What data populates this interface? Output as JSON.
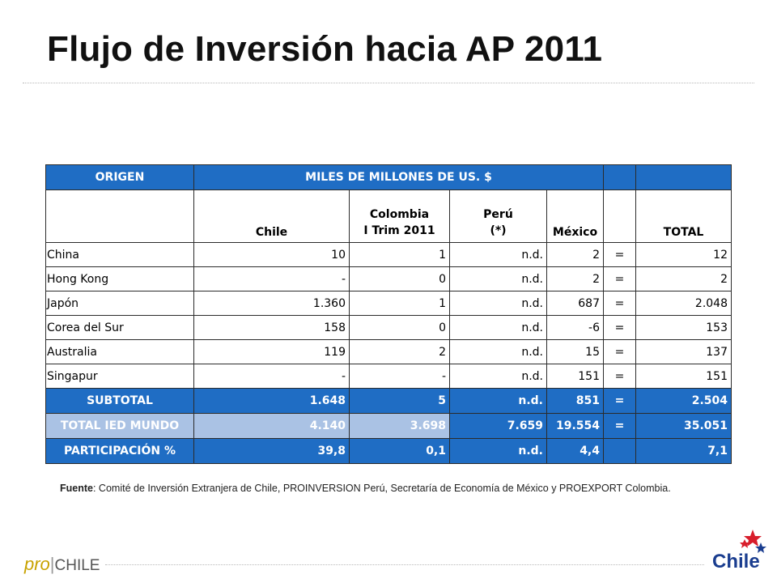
{
  "title": "Flujo de Inversión hacia AP 2011",
  "table": {
    "header_top": {
      "origin": "ORIGEN",
      "units": "MILES DE MILLONES DE US. $"
    },
    "columns": {
      "chile": "Chile",
      "colombia": "Colombia I Trim 2011",
      "peru": "Perú (*)",
      "mexico": "México",
      "total": "TOTAL"
    },
    "rows": [
      {
        "origin": "China",
        "chile": "10",
        "colombia": "1",
        "peru": "n.d.",
        "mexico": "2",
        "eq": "=",
        "total": "12"
      },
      {
        "origin": "Hong Kong",
        "chile": "-",
        "colombia": "0",
        "peru": "n.d.",
        "mexico": "2",
        "eq": "=",
        "total": "2"
      },
      {
        "origin": "Japón",
        "chile": "1.360",
        "colombia": "1",
        "peru": "n.d.",
        "mexico": "687",
        "eq": "=",
        "total": "2.048"
      },
      {
        "origin": "Corea del Sur",
        "chile": "158",
        "colombia": "0",
        "peru": "n.d.",
        "mexico": "-6",
        "eq": "=",
        "total": "153"
      },
      {
        "origin": "Australia",
        "chile": "119",
        "colombia": "2",
        "peru": "n.d.",
        "mexico": "15",
        "eq": "=",
        "total": "137"
      },
      {
        "origin": "Singapur",
        "chile": "-",
        "colombia": "-",
        "peru": "n.d.",
        "mexico": "151",
        "eq": "=",
        "total": "151"
      }
    ],
    "subtotal": {
      "label": "SUBTOTAL",
      "chile": "1.648",
      "colombia": "5",
      "peru": "n.d.",
      "mexico": "851",
      "eq": "=",
      "total": "2.504"
    },
    "total_world": {
      "label": "TOTAL IED MUNDO",
      "chile": "4.140",
      "colombia": "3.698",
      "peru": "7.659",
      "mexico": "19.554",
      "eq": "=",
      "total": "35.051"
    },
    "participation": {
      "label": "PARTICIPACIÓN %",
      "chile": "39,8",
      "colombia": "0,1",
      "peru": "n.d.",
      "mexico": "4,4",
      "eq": "",
      "total": "7,1"
    }
  },
  "source": {
    "label": "Fuente",
    "text": ": Comité de Inversión Extranjera de Chile, PROINVERSION Perú, Secretaría de Economía de México y PROEXPORT Colombia."
  },
  "footer": {
    "prochile_pro": "pro",
    "prochile_bar": "|",
    "prochile_chile": "CHILE",
    "chile_logo": "Chile"
  },
  "colors": {
    "header_blue": "#1f6dc4",
    "total_row_light": "#aac2e4",
    "prochile_gold": "#c8a200",
    "chile_logo_blue": "#1a3d8f"
  }
}
